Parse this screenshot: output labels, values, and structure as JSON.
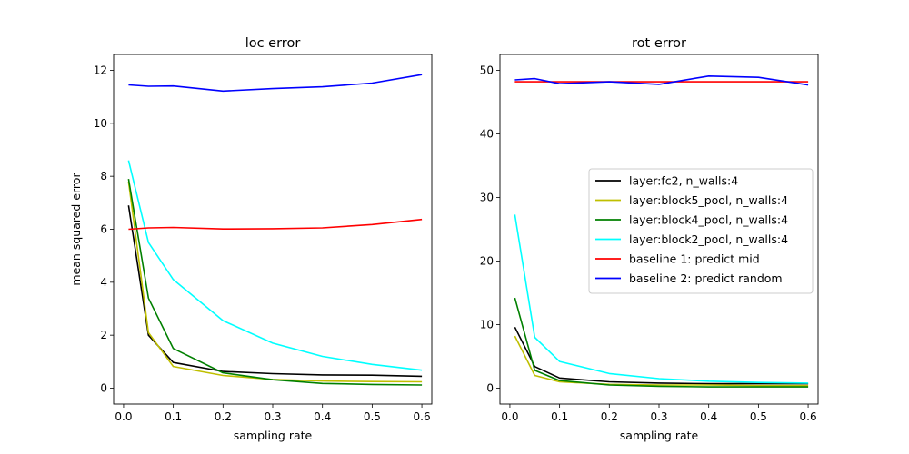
{
  "chart_data": [
    {
      "type": "line",
      "title": "loc error",
      "xlabel": "sampling rate",
      "ylabel": "mean squared error",
      "xlim": [
        -0.02,
        0.62
      ],
      "ylim": [
        -0.6,
        12.6
      ],
      "xticks": [
        0.0,
        0.1,
        0.2,
        0.3,
        0.4,
        0.5,
        0.6
      ],
      "xtick_labels": [
        "0.0",
        "0.1",
        "0.2",
        "0.3",
        "0.4",
        "0.5",
        "0.6"
      ],
      "yticks": [
        0,
        2,
        4,
        6,
        8,
        10,
        12
      ],
      "ytick_labels": [
        "0",
        "2",
        "4",
        "6",
        "8",
        "10",
        "12"
      ],
      "x": [
        0.01,
        0.05,
        0.1,
        0.2,
        0.3,
        0.4,
        0.5,
        0.6
      ],
      "series": [
        {
          "name": "layer:fc2, n_walls:4",
          "color": "#000000",
          "values": [
            6.9,
            2.0,
            0.97,
            0.63,
            0.55,
            0.5,
            0.49,
            0.45
          ]
        },
        {
          "name": "layer:block5_pool, n_walls:4",
          "color": "#bfbf00",
          "values": [
            7.8,
            2.1,
            0.82,
            0.48,
            0.33,
            0.27,
            0.25,
            0.24
          ]
        },
        {
          "name": "layer:block4_pool, n_walls:4",
          "color": "#008000",
          "values": [
            7.9,
            3.4,
            1.5,
            0.58,
            0.32,
            0.18,
            0.14,
            0.12
          ]
        },
        {
          "name": "layer:block2_pool, n_walls:4",
          "color": "#00ffff",
          "values": [
            8.6,
            5.5,
            4.1,
            2.55,
            1.7,
            1.2,
            0.9,
            0.68
          ]
        },
        {
          "name": "baseline 1: predict mid",
          "color": "#ff0000",
          "values": [
            6.0,
            6.05,
            6.07,
            6.01,
            6.02,
            6.05,
            6.18,
            6.37
          ]
        },
        {
          "name": "baseline 2: predict random",
          "color": "#0000ff",
          "values": [
            11.45,
            11.4,
            11.41,
            11.22,
            11.31,
            11.38,
            11.52,
            11.84
          ]
        }
      ]
    },
    {
      "type": "line",
      "title": "rot error",
      "xlabel": "sampling rate",
      "ylabel": "",
      "xlim": [
        -0.02,
        0.62
      ],
      "ylim": [
        -2.5,
        52.5
      ],
      "xticks": [
        0.0,
        0.1,
        0.2,
        0.3,
        0.4,
        0.5,
        0.6
      ],
      "xtick_labels": [
        "0.0",
        "0.1",
        "0.2",
        "0.3",
        "0.4",
        "0.5",
        "0.6"
      ],
      "yticks": [
        0,
        10,
        20,
        30,
        40,
        50
      ],
      "ytick_labels": [
        "0",
        "10",
        "20",
        "30",
        "40",
        "50"
      ],
      "x": [
        0.01,
        0.05,
        0.1,
        0.2,
        0.3,
        0.4,
        0.5,
        0.6
      ],
      "legend_position": "center-right",
      "series": [
        {
          "name": "layer:fc2, n_walls:4",
          "color": "#000000",
          "values": [
            9.6,
            3.4,
            1.6,
            1.0,
            0.8,
            0.7,
            0.7,
            0.7
          ]
        },
        {
          "name": "layer:block5_pool, n_walls:4",
          "color": "#bfbf00",
          "values": [
            8.2,
            2.0,
            1.0,
            0.6,
            0.5,
            0.5,
            0.4,
            0.4
          ]
        },
        {
          "name": "layer:block4_pool, n_walls:4",
          "color": "#008000",
          "values": [
            14.2,
            2.8,
            1.2,
            0.5,
            0.3,
            0.2,
            0.2,
            0.2
          ]
        },
        {
          "name": "layer:block2_pool, n_walls:4",
          "color": "#00ffff",
          "values": [
            27.3,
            8.0,
            4.2,
            2.3,
            1.5,
            1.1,
            0.9,
            0.8
          ]
        },
        {
          "name": "baseline 1: predict mid",
          "color": "#ff0000",
          "values": [
            48.2,
            48.2,
            48.2,
            48.2,
            48.2,
            48.2,
            48.2,
            48.2
          ]
        },
        {
          "name": "baseline 2: predict random",
          "color": "#0000ff",
          "values": [
            48.5,
            48.7,
            47.9,
            48.2,
            47.8,
            49.1,
            48.9,
            47.7
          ]
        }
      ]
    }
  ]
}
